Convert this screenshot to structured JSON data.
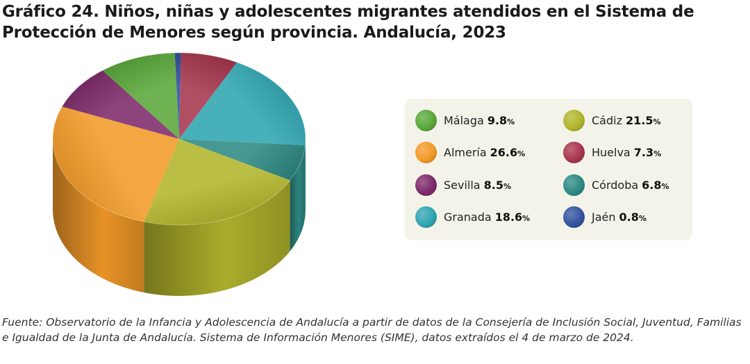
{
  "title": "Gráfico 24. Niños, niñas y adolescentes migrantes atendidos en el Sistema de Protección de Menores según provincia. Andalucía, 2023",
  "source": "Fuente: Observatorio de la Infancia y Adolescencia de Andalucía a partir de datos de la Consejería de Inclusión Social, Juventud, Familias e Igualdad de la Junta de Andalucía. Sistema de Información Menores (SIME), datos extraídos el 4 de marzo de 2024.",
  "chart_data": {
    "type": "pie",
    "title": "Gráfico 24. Niños, niñas y adolescentes migrantes atendidos en el Sistema de Protección de Menores según provincia. Andalucía, 2023",
    "unit": "%",
    "legend_position": "right",
    "slices": [
      {
        "name": "Málaga",
        "value": 9.8,
        "label": "9.8",
        "color": "#5aa83a"
      },
      {
        "name": "Cádiz",
        "value": 21.5,
        "label": "21.5",
        "color": "#b2b52c"
      },
      {
        "name": "Almería",
        "value": 26.6,
        "label": "26.6",
        "color": "#f39a28"
      },
      {
        "name": "Huelva",
        "value": 7.3,
        "label": "7.3",
        "color": "#a8364f"
      },
      {
        "name": "Sevilla",
        "value": 8.5,
        "label": "8.5",
        "color": "#7e2a6a"
      },
      {
        "name": "Córdoba",
        "value": 6.8,
        "label": "6.8",
        "color": "#2e8a84"
      },
      {
        "name": "Granada",
        "value": 18.6,
        "label": "18.6",
        "color": "#2fa5b0"
      },
      {
        "name": "Jaén",
        "value": 0.8,
        "label": "0.8",
        "color": "#34549e"
      }
    ]
  }
}
